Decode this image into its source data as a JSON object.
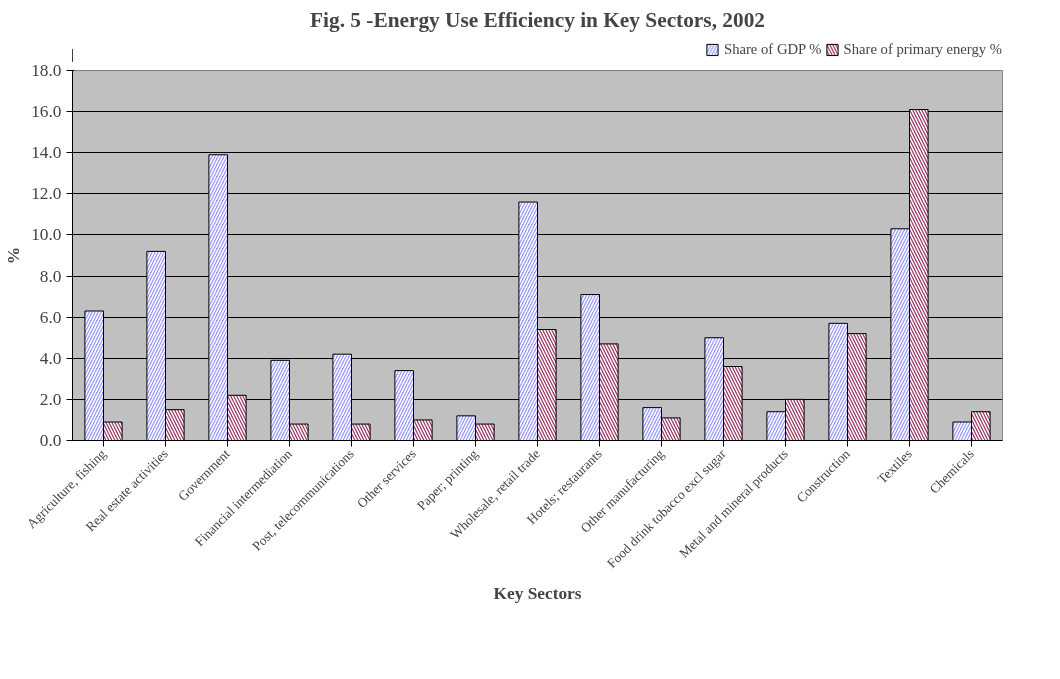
{
  "chart_data": {
    "type": "bar",
    "title": "Fig. 5 -Energy Use Efficiency in Key Sectors, 2002",
    "xlabel": "Key Sectors",
    "ylabel": "%",
    "categories": [
      "Agriculture, fishing",
      "Real estate activities",
      "Government",
      "Financial intermediation",
      "Post, telecommunications",
      "Other services",
      "Paper; printing",
      "Wholesale, retail trade",
      "Hotels; restaurants",
      "Other manufacturing",
      "Food drink tobacco excl sugar",
      "Metal and mineral products",
      "Construction",
      "Textiles",
      "Chemicals"
    ],
    "series": [
      {
        "name": "Share of GDP %",
        "color": "#9999ff",
        "values": [
          6.3,
          9.2,
          13.9,
          3.9,
          4.2,
          3.4,
          1.2,
          11.6,
          7.1,
          1.6,
          5.0,
          1.4,
          5.7,
          10.3,
          0.9
        ]
      },
      {
        "name": "Share of primary energy %",
        "color": "#993366",
        "values": [
          0.9,
          1.5,
          2.2,
          0.8,
          0.8,
          1.0,
          0.8,
          5.4,
          4.7,
          1.1,
          3.6,
          2.0,
          5.2,
          16.1,
          1.4
        ]
      }
    ],
    "ylim": [
      0,
      18
    ],
    "yticks": [
      {
        "value": 0,
        "label": "0.0"
      },
      {
        "value": 2,
        "label": "2.0"
      },
      {
        "value": 4,
        "label": "4.0"
      },
      {
        "value": 6,
        "label": "6.0"
      },
      {
        "value": 8,
        "label": "8.0"
      },
      {
        "value": 10,
        "label": "10.0"
      },
      {
        "value": 12,
        "label": "12.0"
      },
      {
        "value": 14,
        "label": "14.0"
      },
      {
        "value": 16,
        "label": "16.0"
      },
      {
        "value": 18,
        "label": "18.0"
      }
    ],
    "grid": "y",
    "legend": "top right"
  }
}
